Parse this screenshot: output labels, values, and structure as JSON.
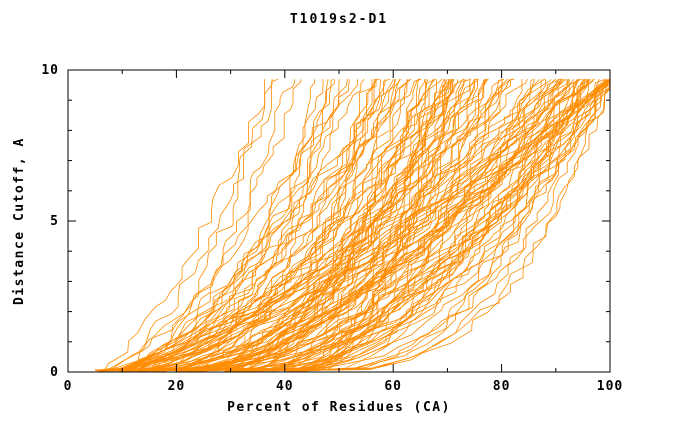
{
  "page": {
    "background": "#ffffff"
  },
  "chart_data": {
    "type": "line",
    "title": "T1019s2-D1",
    "xlabel": "Percent of Residues (CA)",
    "ylabel": "Distance Cutoff, A",
    "xlim": [
      0,
      100
    ],
    "ylim": [
      0,
      10
    ],
    "x_ticks": [
      0,
      20,
      40,
      60,
      80,
      100
    ],
    "x_minor_ticks": [
      10,
      30,
      50,
      70,
      90
    ],
    "y_ticks": [
      0,
      5,
      10
    ],
    "y_minor_ticks": [
      1,
      2,
      3,
      4,
      6,
      7,
      8,
      9
    ],
    "grid": false,
    "legend": "none",
    "curve_color": "#ff8c00",
    "axis_color": "#000000",
    "ensemble": {
      "num_curves": 140,
      "seed": 1019,
      "y_top_drawn": 9.7,
      "x_start_range": [
        5,
        45
      ],
      "x_start_bias": 1.4,
      "x_top_min_fraction": 0.3,
      "x_top_max_fraction": 1.05,
      "exponent_range": [
        0.3,
        0.8
      ],
      "x_jitter": 3.0,
      "y_step_range": [
        0.15,
        0.45
      ]
    }
  }
}
